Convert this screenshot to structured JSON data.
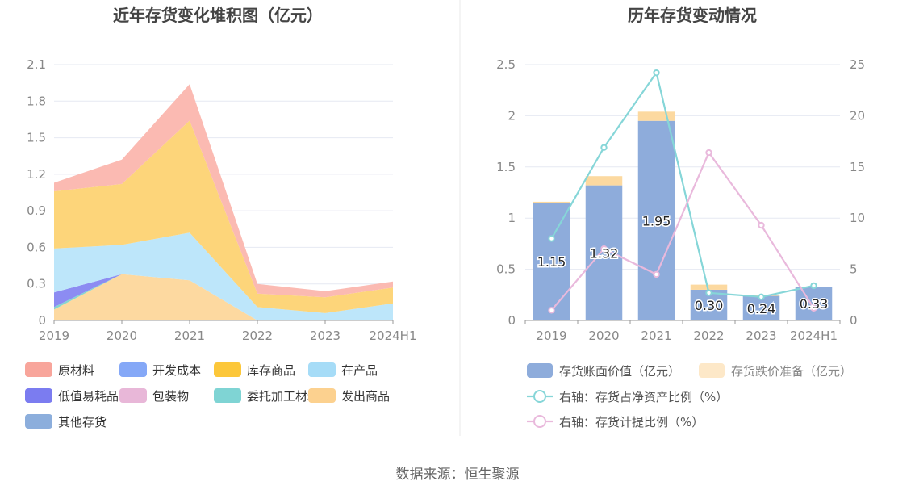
{
  "source_note": "数据来源：恒生聚源",
  "colors": {
    "grid": "#e6e9f2",
    "axis": "#999999",
    "divider": "#e8e8e8",
    "title": "#444444",
    "label": "#666666"
  },
  "chart_data": [
    {
      "type": "area",
      "stacked": true,
      "title": "近年存货变化堆积图（亿元）",
      "categories": [
        "2019",
        "2020",
        "2021",
        "2022",
        "2023",
        "2024H1"
      ],
      "ylim": [
        0,
        2.1
      ],
      "yticks": [
        "0",
        "0.3",
        "0.6",
        "0.9",
        "1.2",
        "1.5",
        "1.8",
        "2.1"
      ],
      "grid": true,
      "legend_position": "bottom",
      "series": [
        {
          "name": "发出商品",
          "color": "#fdd9a0",
          "legend_color": "#fcd18f",
          "values": [
            0.09,
            0.38,
            0.33,
            0,
            0,
            0
          ]
        },
        {
          "name": "委托加工材料",
          "color": "#86d6cf",
          "legend_color": "#7fd4d4",
          "values": [
            0.02,
            0,
            0,
            0,
            0,
            0
          ]
        },
        {
          "name": "包装物",
          "color": "#e4b8dc",
          "legend_color": "#e8b7d8",
          "values": [
            0,
            0,
            0,
            0,
            0,
            0
          ]
        },
        {
          "name": "低值易耗品",
          "color": "#8c8cf2",
          "legend_color": "#7b7cf0",
          "values": [
            0.12,
            0,
            0,
            0,
            0,
            0
          ]
        },
        {
          "name": "在产品",
          "color": "#bde6fa",
          "legend_color": "#a6dcf7",
          "values": [
            0.36,
            0.24,
            0.39,
            0.11,
            0.06,
            0.14
          ]
        },
        {
          "name": "库存商品",
          "color": "#fdd57a",
          "legend_color": "#fcc73a",
          "values": [
            0.47,
            0.5,
            0.92,
            0.11,
            0.13,
            0.13
          ]
        },
        {
          "name": "开发成本",
          "color": "#93b0f7",
          "legend_color": "#85a8f7",
          "values": [
            0,
            0,
            0,
            0,
            0,
            0
          ]
        },
        {
          "name": "原材料",
          "color": "#fbbab2",
          "legend_color": "#f8a59b",
          "values": [
            0.07,
            0.2,
            0.3,
            0.08,
            0.05,
            0.05
          ]
        },
        {
          "name": "其他存货",
          "color": "#8fb0dc",
          "legend_color": "#8caedc",
          "values": [
            0,
            0,
            0,
            0,
            0,
            0
          ]
        }
      ],
      "legend_order": [
        "原材料",
        "开发成本",
        "库存商品",
        "在产品",
        "低值易耗品",
        "包装物",
        "委托加工材料",
        "发出商品",
        "其他存货"
      ]
    },
    {
      "type": "bar",
      "title": "历年存货变动情况",
      "categories": [
        "2019",
        "2020",
        "2021",
        "2022",
        "2023",
        "2024H1"
      ],
      "ylim": [
        0,
        2.5
      ],
      "yticks": [
        "0",
        "0.5",
        "1",
        "1.5",
        "2",
        "2.5"
      ],
      "y2lim": [
        0,
        25
      ],
      "y2ticks": [
        "0",
        "5",
        "10",
        "15",
        "20",
        "25"
      ],
      "grid": true,
      "legend_position": "bottom",
      "series": [
        {
          "name": "存货账面价值（亿元）",
          "kind": "bar",
          "stack": true,
          "color": "#8eacdb",
          "values": [
            1.15,
            1.32,
            1.95,
            0.3,
            0.24,
            0.33
          ],
          "labels": [
            "1.15",
            "1.32",
            "1.95",
            "0.30",
            "0.24",
            "0.33"
          ]
        },
        {
          "name": "存货跌价准备（亿元）",
          "kind": "bar",
          "stack": true,
          "color": "#fcd9a0",
          "legend_color": "#fde8c8",
          "values": [
            0.01,
            0.09,
            0.09,
            0.05,
            0.01,
            0.0
          ]
        },
        {
          "name": "右轴：存货占净资产比例（%）",
          "kind": "line",
          "axis": "right",
          "color": "#86d6d8",
          "values": [
            8.0,
            16.9,
            24.2,
            2.7,
            2.3,
            3.4
          ]
        },
        {
          "name": "右轴：存货计提比例（%）",
          "kind": "line",
          "axis": "right",
          "color": "#e9b9dc",
          "values": [
            1.0,
            7.0,
            4.5,
            16.4,
            9.3,
            1.2
          ]
        }
      ]
    }
  ]
}
